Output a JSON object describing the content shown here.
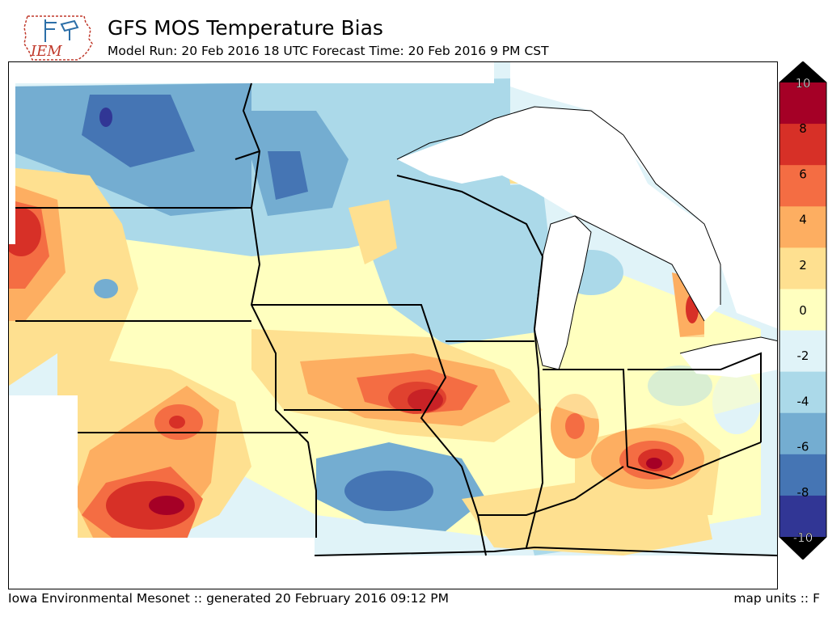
{
  "header": {
    "title": "GFS MOS Temperature Bias",
    "subtitle": "Model Run: 20 Feb 2016 18 UTC Forecast Time: 20 Feb 2016 9 PM CST"
  },
  "logo": {
    "text": "IEM"
  },
  "footer": {
    "source": "Iowa Environmental Mesonet :: generated 20 February 2016 09:12 PM",
    "units": "map units :: F"
  },
  "colorbar": {
    "ticks": [
      "10",
      "8",
      "6",
      "4",
      "2",
      "0",
      "-2",
      "-4",
      "-6",
      "-8",
      "-10"
    ],
    "colors": [
      "#a50026",
      "#d73027",
      "#f46d43",
      "#fdae61",
      "#fee090",
      "#ffffbf",
      "#e0f3f8",
      "#abd9e9",
      "#74add1",
      "#4575b4",
      "#313695"
    ],
    "over_color": "#000000",
    "under_color": "#000000"
  }
}
